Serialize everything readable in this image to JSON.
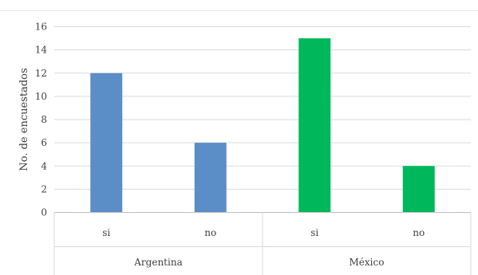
{
  "chart_data": {
    "type": "bar",
    "title": "",
    "xlabel": "",
    "ylabel": "No. de encuestados",
    "ylim": [
      0,
      16
    ],
    "yticks": [
      0,
      2,
      4,
      6,
      8,
      10,
      12,
      14,
      16
    ],
    "grid": true,
    "legend": "none",
    "groups": [
      {
        "label": "Argentina",
        "color": "#5b8ec7",
        "categories": [
          "si",
          "no"
        ],
        "values": [
          12,
          6
        ]
      },
      {
        "label": "México",
        "color": "#00b85c",
        "categories": [
          "si",
          "no"
        ],
        "values": [
          15,
          4
        ]
      }
    ]
  }
}
